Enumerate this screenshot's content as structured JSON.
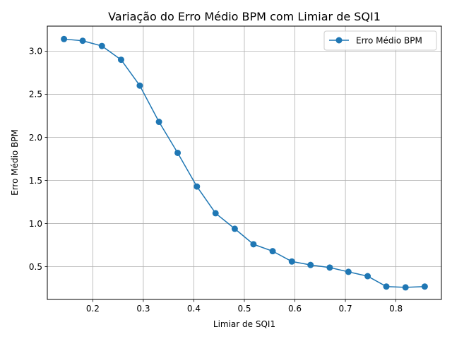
{
  "chart_data": {
    "type": "line",
    "title": "Variação do Erro Médio BPM com Limiar de SQI1",
    "xlabel": "Limiar de SQI1",
    "ylabel": "Erro Médio BPM",
    "xlim": [
      0.11,
      0.89
    ],
    "ylim": [
      0.12,
      3.29
    ],
    "xticks": [
      0.2,
      0.3,
      0.4,
      0.5,
      0.6,
      0.7,
      0.8
    ],
    "xtick_labels": [
      "0.2",
      "0.3",
      "0.4",
      "0.5",
      "0.6",
      "0.7",
      "0.8"
    ],
    "yticks": [
      0.5,
      1.0,
      1.5,
      2.0,
      2.5,
      3.0
    ],
    "ytick_labels": [
      "0.5",
      "1.0",
      "1.5",
      "2.0",
      "2.5",
      "3.0"
    ],
    "grid": true,
    "legend_position": "top-right",
    "series": [
      {
        "name": "Erro Médio BPM",
        "color": "#1f77b4",
        "marker": "circle",
        "x": [
          0.143,
          0.18,
          0.218,
          0.256,
          0.293,
          0.331,
          0.368,
          0.406,
          0.443,
          0.481,
          0.518,
          0.556,
          0.594,
          0.631,
          0.669,
          0.706,
          0.744,
          0.781,
          0.819,
          0.857
        ],
        "y": [
          3.14,
          3.12,
          3.06,
          2.9,
          2.6,
          2.18,
          1.82,
          1.43,
          1.12,
          0.94,
          0.76,
          0.68,
          0.56,
          0.52,
          0.49,
          0.44,
          0.39,
          0.27,
          0.26,
          0.27
        ]
      }
    ]
  }
}
